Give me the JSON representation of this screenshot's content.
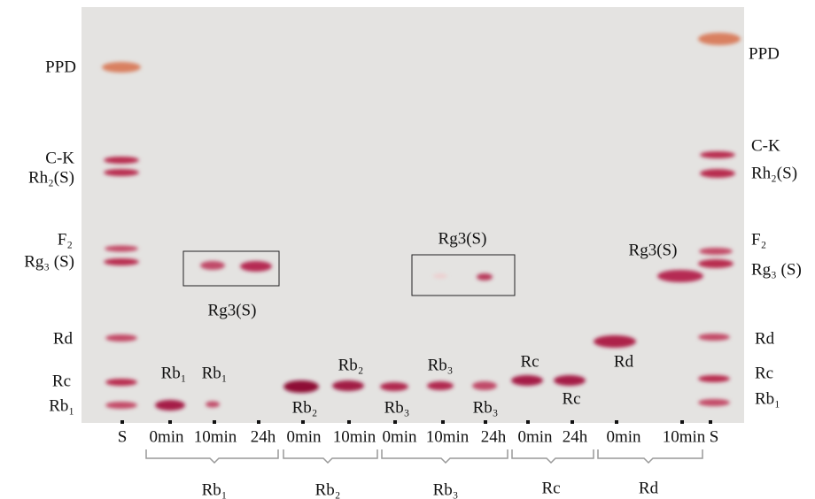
{
  "left_labels": [
    "PPD",
    "C-K",
    "Rh₂(S)",
    "F₂",
    "Rg₃ (S)",
    "Rd",
    "Rc",
    "Rb₁"
  ],
  "right_labels": [
    "PPD",
    "C-K",
    "Rh₂(S)",
    "F₂",
    "Rg₃ (S)",
    "Rd",
    "Rc",
    "Rb₁"
  ],
  "band_labels": [
    "Rb₁",
    "Rb₁",
    "Rg3(S)",
    "Rb₂",
    "Rb₂",
    "Rb₃",
    "Rb₃",
    "Rb₃",
    "Rg3(S)",
    "Rc",
    "Rc",
    "Rd",
    "Rg3(S)"
  ],
  "lane_labels": [
    "S",
    "0min",
    "10min",
    "24h",
    "0min",
    "10min",
    "0min",
    "10min",
    "24h",
    "0min",
    "24h",
    "0min",
    "10min",
    "S"
  ],
  "group_labels": [
    "Rb₁",
    "Rb₂",
    "Rb₃",
    "Rc",
    "Rd"
  ]
}
